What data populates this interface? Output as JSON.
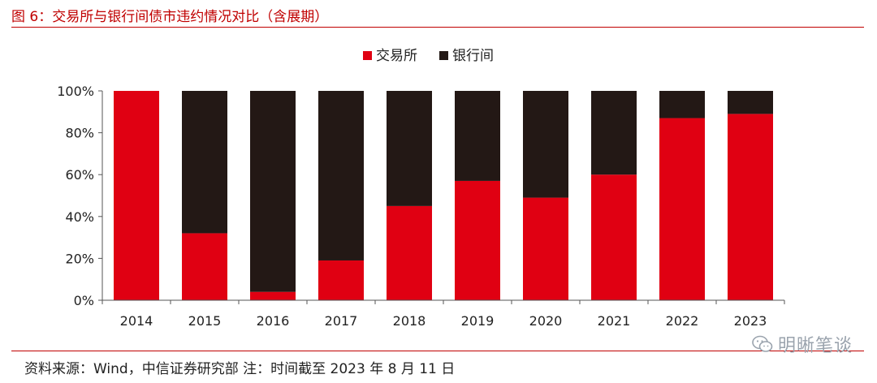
{
  "figure": {
    "title": "图 6：交易所与银行间债市违约情况对比（含展期）",
    "source": "资料来源：Wind，中信证券研究部  注：时间截至 2023 年 8 月 11 日",
    "watermark": "明晰笔谈"
  },
  "chart_data": {
    "type": "bar",
    "stacked": true,
    "categories": [
      "2014",
      "2015",
      "2016",
      "2017",
      "2018",
      "2019",
      "2020",
      "2021",
      "2022",
      "2023"
    ],
    "series": [
      {
        "name": "交易所",
        "color": "#e00012",
        "values": [
          100,
          32,
          4,
          19,
          45,
          57,
          49,
          60,
          87,
          89
        ]
      },
      {
        "name": "银行间",
        "color": "#231815",
        "values": [
          0,
          68,
          96,
          81,
          55,
          43,
          51,
          40,
          13,
          11
        ]
      }
    ],
    "yticks": [
      "0%",
      "20%",
      "40%",
      "60%",
      "80%",
      "100%"
    ],
    "ylim": [
      0,
      100
    ],
    "legend_position": "top-center",
    "grid": false
  }
}
